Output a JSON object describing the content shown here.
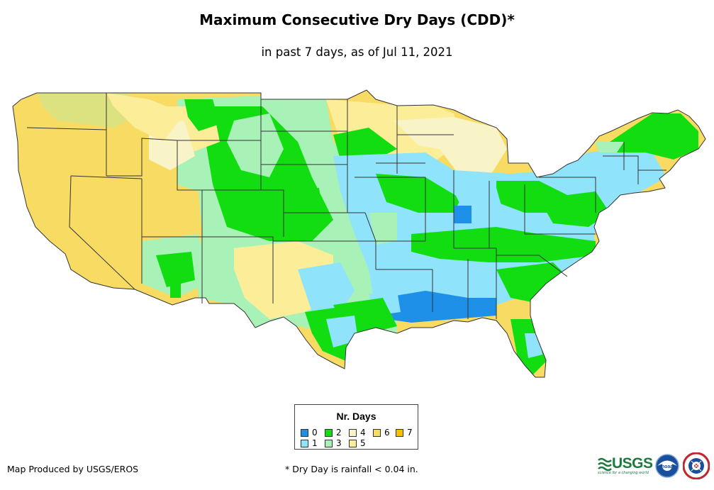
{
  "title": "Maximum Consecutive Dry Days (CDD)*",
  "subtitle": "in past 7 days, as of Jul 11, 2021",
  "legend": {
    "title": "Nr. Days",
    "items": [
      {
        "label": "0",
        "color": "#1E90E8"
      },
      {
        "label": "1",
        "color": "#8FE3FB"
      },
      {
        "label": "2",
        "color": "#11DD11"
      },
      {
        "label": "3",
        "color": "#A8F2B8"
      },
      {
        "label": "4",
        "color": "#F8F4C8"
      },
      {
        "label": "5",
        "color": "#FCEE98"
      },
      {
        "label": "6",
        "color": "#F8DB62"
      },
      {
        "label": "7",
        "color": "#F6C000"
      }
    ]
  },
  "credit_left": "Map Produced by USGS/EROS",
  "footnote": "* Dry Day is rainfall < 0.04 in.",
  "logos": {
    "usgs": "USGS",
    "usgs_tagline": "science for a changing world",
    "noaa": "noaa",
    "nws": "National Weather Service"
  }
}
